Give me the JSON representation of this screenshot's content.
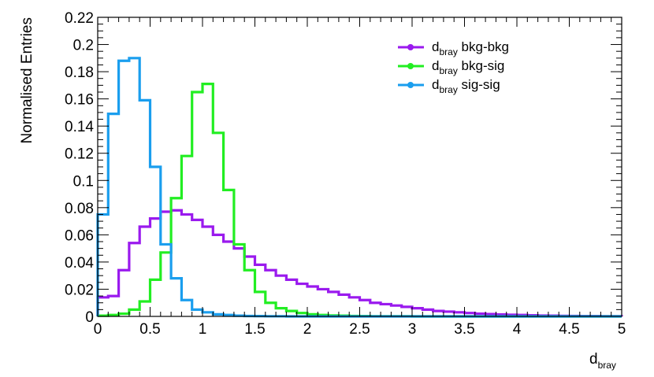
{
  "chart_data": {
    "type": "line",
    "ylabel": "Normalised Entries",
    "xlabel": {
      "main": "d",
      "sub": "bray"
    },
    "xlim": [
      0,
      5
    ],
    "ylim": [
      0,
      0.22
    ],
    "grid": false,
    "legend_position": "top-right",
    "bin_width": 0.1,
    "x_ticks": [
      {
        "value": 0,
        "label": "0"
      },
      {
        "value": 0.5,
        "label": "0.5"
      },
      {
        "value": 1,
        "label": "1"
      },
      {
        "value": 1.5,
        "label": "1.5"
      },
      {
        "value": 2,
        "label": "2"
      },
      {
        "value": 2.5,
        "label": "2.5"
      },
      {
        "value": 3,
        "label": "3"
      },
      {
        "value": 3.5,
        "label": "3.5"
      },
      {
        "value": 4,
        "label": "4"
      },
      {
        "value": 4.5,
        "label": "4.5"
      },
      {
        "value": 5,
        "label": "5"
      }
    ],
    "y_ticks": [
      {
        "value": 0,
        "label": "0"
      },
      {
        "value": 0.02,
        "label": "0.02"
      },
      {
        "value": 0.04,
        "label": "0.04"
      },
      {
        "value": 0.06,
        "label": "0.06"
      },
      {
        "value": 0.08,
        "label": "0.08"
      },
      {
        "value": 0.1,
        "label": "0.1"
      },
      {
        "value": 0.12,
        "label": "0.12"
      },
      {
        "value": 0.14,
        "label": "0.14"
      },
      {
        "value": 0.16,
        "label": "0.16"
      },
      {
        "value": 0.18,
        "label": "0.18"
      },
      {
        "value": 0.2,
        "label": "0.2"
      },
      {
        "value": 0.22,
        "label": "0.22"
      }
    ],
    "series": [
      {
        "name_main": "d",
        "name_sub": "bray",
        "name_rest": " bkg-bkg",
        "color": "#9a1aee",
        "values": [
          0.014,
          0.015,
          0.034,
          0.054,
          0.066,
          0.072,
          0.077,
          0.078,
          0.075,
          0.071,
          0.066,
          0.06,
          0.055,
          0.05,
          0.044,
          0.038,
          0.034,
          0.03,
          0.027,
          0.024,
          0.022,
          0.02,
          0.018,
          0.016,
          0.014,
          0.012,
          0.01,
          0.009,
          0.008,
          0.007,
          0.006,
          0.005,
          0.004,
          0.0035,
          0.003,
          0.0025,
          0.002,
          0.0017,
          0.0014,
          0.0012,
          0.001,
          0.0008,
          0.0006,
          0.0005,
          0.0004,
          0.0003,
          0.0002,
          0.0002,
          0.0001,
          0.0001
        ]
      },
      {
        "name_main": "d",
        "name_sub": "bray",
        "name_rest": " bkg-sig",
        "color": "#22ee22",
        "values": [
          0.0005,
          0.001,
          0.002,
          0.005,
          0.011,
          0.027,
          0.047,
          0.087,
          0.118,
          0.165,
          0.171,
          0.135,
          0.093,
          0.053,
          0.034,
          0.018,
          0.01,
          0.006,
          0.004,
          0.0025,
          0.0015,
          0.001,
          0.0007,
          0.0005,
          0.0003,
          0.0002,
          0.0001,
          0.0001,
          0.0001,
          0.0001,
          0,
          0,
          0,
          0,
          0,
          0,
          0,
          0,
          0,
          0,
          0,
          0,
          0,
          0,
          0,
          0,
          0,
          0,
          0,
          0
        ]
      },
      {
        "name_main": "d",
        "name_sub": "bray",
        "name_rest": " sig-sig",
        "color": "#1a9eee",
        "values": [
          0.075,
          0.149,
          0.188,
          0.19,
          0.159,
          0.11,
          0.053,
          0.028,
          0.012,
          0.005,
          0.003,
          0.0015,
          0.001,
          0.0005,
          0.0003,
          0.0002,
          0.0001,
          0.0001,
          0,
          0,
          0,
          0,
          0,
          0,
          0,
          0,
          0,
          0,
          0,
          0,
          0,
          0,
          0,
          0,
          0,
          0,
          0,
          0,
          0,
          0,
          0,
          0,
          0,
          0,
          0,
          0,
          0,
          0,
          0,
          0
        ]
      }
    ]
  }
}
